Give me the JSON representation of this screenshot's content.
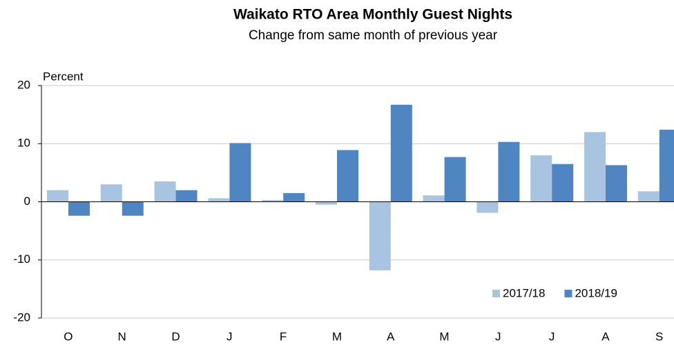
{
  "chart_data": {
    "type": "bar",
    "title": "Waikato RTO Area Monthly Guest Nights",
    "subtitle": "Change from same month of previous year",
    "y_label": "Percent",
    "categories": [
      "O",
      "N",
      "D",
      "J",
      "F",
      "M",
      "A",
      "M",
      "J",
      "J",
      "A",
      "S"
    ],
    "series": [
      {
        "name": "2017/18",
        "color": "#a9c4e0",
        "values": [
          2.0,
          3.0,
          3.5,
          0.6,
          0.3,
          -0.5,
          -11.8,
          1.1,
          -1.9,
          8.0,
          12.0,
          1.8
        ]
      },
      {
        "name": "2018/19",
        "color": "#4f86c1",
        "values": [
          -2.4,
          -2.4,
          2.0,
          10.1,
          1.5,
          8.9,
          16.7,
          7.7,
          10.3,
          6.5,
          6.3,
          12.4
        ]
      }
    ],
    "ylim": [
      -20,
      20
    ],
    "yticks": [
      -20,
      -10,
      0,
      10,
      20
    ],
    "grid": true,
    "legend": "lower right"
  }
}
